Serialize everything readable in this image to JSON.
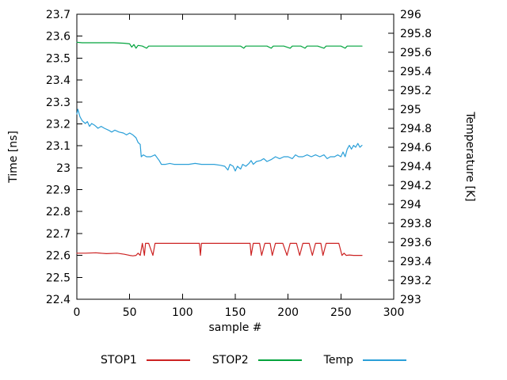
{
  "chart_data": {
    "type": "line",
    "title": "",
    "xlabel": "sample #",
    "ylabel_left": "Time [ns]",
    "ylabel_right": "Temperature [K]",
    "xlim": [
      0,
      300
    ],
    "ylim_left": [
      22.4,
      23.7
    ],
    "ylim_right": [
      293,
      296
    ],
    "xticks": [
      0,
      50,
      100,
      150,
      200,
      250,
      300
    ],
    "yticks_left": [
      22.4,
      22.5,
      22.6,
      22.7,
      22.8,
      22.9,
      23,
      23.1,
      23.2,
      23.3,
      23.4,
      23.5,
      23.6,
      23.7
    ],
    "yticks_right": [
      293,
      293.2,
      293.4,
      293.6,
      293.8,
      294,
      294.2,
      294.4,
      294.6,
      294.8,
      295,
      295.2,
      295.4,
      295.6,
      295.8,
      296
    ],
    "grid": false,
    "legend_position": "bottom",
    "series": [
      {
        "name": "STOP1",
        "axis": "left",
        "color": "#cc2222",
        "points": [
          [
            0,
            22.61
          ],
          [
            8,
            22.61
          ],
          [
            18,
            22.612
          ],
          [
            28,
            22.608
          ],
          [
            38,
            22.61
          ],
          [
            45,
            22.605
          ],
          [
            50,
            22.6
          ],
          [
            53,
            22.598
          ],
          [
            56,
            22.6
          ],
          [
            58,
            22.61
          ],
          [
            60,
            22.6
          ],
          [
            62,
            22.655
          ],
          [
            64,
            22.6
          ],
          [
            65,
            22.655
          ],
          [
            68,
            22.655
          ],
          [
            72,
            22.6
          ],
          [
            74,
            22.655
          ],
          [
            80,
            22.655
          ],
          [
            90,
            22.655
          ],
          [
            100,
            22.655
          ],
          [
            110,
            22.655
          ],
          [
            116,
            22.655
          ],
          [
            117,
            22.6
          ],
          [
            118,
            22.655
          ],
          [
            130,
            22.655
          ],
          [
            145,
            22.655
          ],
          [
            160,
            22.655
          ],
          [
            164,
            22.655
          ],
          [
            165,
            22.6
          ],
          [
            167,
            22.655
          ],
          [
            173,
            22.655
          ],
          [
            175,
            22.6
          ],
          [
            178,
            22.655
          ],
          [
            183,
            22.655
          ],
          [
            185,
            22.6
          ],
          [
            188,
            22.655
          ],
          [
            195,
            22.655
          ],
          [
            199,
            22.6
          ],
          [
            202,
            22.655
          ],
          [
            208,
            22.655
          ],
          [
            211,
            22.6
          ],
          [
            214,
            22.655
          ],
          [
            220,
            22.655
          ],
          [
            223,
            22.6
          ],
          [
            226,
            22.655
          ],
          [
            231,
            22.655
          ],
          [
            233,
            22.6
          ],
          [
            236,
            22.655
          ],
          [
            243,
            22.655
          ],
          [
            248,
            22.655
          ],
          [
            251,
            22.6
          ],
          [
            253,
            22.61
          ],
          [
            255,
            22.6
          ],
          [
            258,
            22.602
          ],
          [
            262,
            22.6
          ],
          [
            266,
            22.6
          ],
          [
            270,
            22.6
          ]
        ]
      },
      {
        "name": "STOP2",
        "axis": "left",
        "color": "#00a33c",
        "points": [
          [
            0,
            23.572
          ],
          [
            5,
            23.57
          ],
          [
            15,
            23.57
          ],
          [
            25,
            23.57
          ],
          [
            35,
            23.57
          ],
          [
            45,
            23.568
          ],
          [
            50,
            23.565
          ],
          [
            52,
            23.55
          ],
          [
            54,
            23.562
          ],
          [
            56,
            23.545
          ],
          [
            58,
            23.558
          ],
          [
            62,
            23.555
          ],
          [
            66,
            23.545
          ],
          [
            68,
            23.555
          ],
          [
            75,
            23.555
          ],
          [
            85,
            23.555
          ],
          [
            95,
            23.555
          ],
          [
            105,
            23.555
          ],
          [
            115,
            23.555
          ],
          [
            125,
            23.555
          ],
          [
            135,
            23.555
          ],
          [
            145,
            23.555
          ],
          [
            155,
            23.555
          ],
          [
            158,
            23.545
          ],
          [
            160,
            23.555
          ],
          [
            170,
            23.555
          ],
          [
            180,
            23.555
          ],
          [
            184,
            23.545
          ],
          [
            186,
            23.555
          ],
          [
            196,
            23.555
          ],
          [
            202,
            23.545
          ],
          [
            204,
            23.555
          ],
          [
            212,
            23.555
          ],
          [
            216,
            23.545
          ],
          [
            218,
            23.555
          ],
          [
            228,
            23.555
          ],
          [
            234,
            23.545
          ],
          [
            236,
            23.555
          ],
          [
            244,
            23.555
          ],
          [
            250,
            23.555
          ],
          [
            254,
            23.545
          ],
          [
            256,
            23.555
          ],
          [
            264,
            23.555
          ],
          [
            270,
            23.555
          ]
        ]
      },
      {
        "name": "Temp",
        "axis": "right",
        "color": "#2a9fd8",
        "points": [
          [
            0,
            294.95
          ],
          [
            1,
            295.0
          ],
          [
            3,
            294.92
          ],
          [
            5,
            294.88
          ],
          [
            8,
            294.85
          ],
          [
            10,
            294.87
          ],
          [
            12,
            294.82
          ],
          [
            14,
            294.85
          ],
          [
            17,
            294.83
          ],
          [
            20,
            294.8
          ],
          [
            23,
            294.82
          ],
          [
            26,
            294.8
          ],
          [
            30,
            294.78
          ],
          [
            33,
            294.76
          ],
          [
            36,
            294.78
          ],
          [
            40,
            294.76
          ],
          [
            44,
            294.75
          ],
          [
            47,
            294.73
          ],
          [
            50,
            294.75
          ],
          [
            53,
            294.73
          ],
          [
            56,
            294.7
          ],
          [
            58,
            294.65
          ],
          [
            60,
            294.63
          ],
          [
            61,
            294.5
          ],
          [
            63,
            294.52
          ],
          [
            66,
            294.5
          ],
          [
            70,
            294.5
          ],
          [
            74,
            294.52
          ],
          [
            78,
            294.46
          ],
          [
            80,
            294.42
          ],
          [
            84,
            294.42
          ],
          [
            88,
            294.43
          ],
          [
            92,
            294.42
          ],
          [
            96,
            294.42
          ],
          [
            100,
            294.42
          ],
          [
            106,
            294.42
          ],
          [
            112,
            294.43
          ],
          [
            118,
            294.42
          ],
          [
            124,
            294.42
          ],
          [
            130,
            294.42
          ],
          [
            136,
            294.41
          ],
          [
            140,
            294.4
          ],
          [
            143,
            294.36
          ],
          [
            145,
            294.42
          ],
          [
            148,
            294.4
          ],
          [
            150,
            294.35
          ],
          [
            152,
            294.4
          ],
          [
            155,
            294.37
          ],
          [
            157,
            294.42
          ],
          [
            160,
            294.4
          ],
          [
            163,
            294.43
          ],
          [
            165,
            294.46
          ],
          [
            167,
            294.42
          ],
          [
            170,
            294.45
          ],
          [
            174,
            294.46
          ],
          [
            177,
            294.48
          ],
          [
            180,
            294.45
          ],
          [
            184,
            294.47
          ],
          [
            188,
            294.5
          ],
          [
            192,
            294.48
          ],
          [
            196,
            294.5
          ],
          [
            200,
            294.5
          ],
          [
            204,
            294.48
          ],
          [
            207,
            294.52
          ],
          [
            210,
            294.5
          ],
          [
            214,
            294.5
          ],
          [
            218,
            294.52
          ],
          [
            222,
            294.5
          ],
          [
            226,
            294.52
          ],
          [
            230,
            294.5
          ],
          [
            234,
            294.52
          ],
          [
            237,
            294.48
          ],
          [
            240,
            294.5
          ],
          [
            244,
            294.5
          ],
          [
            247,
            294.52
          ],
          [
            250,
            294.5
          ],
          [
            252,
            294.55
          ],
          [
            254,
            294.5
          ],
          [
            256,
            294.58
          ],
          [
            258,
            294.62
          ],
          [
            260,
            294.58
          ],
          [
            262,
            294.62
          ],
          [
            264,
            294.6
          ],
          [
            266,
            294.64
          ],
          [
            268,
            294.6
          ],
          [
            270,
            294.62
          ]
        ]
      }
    ]
  }
}
